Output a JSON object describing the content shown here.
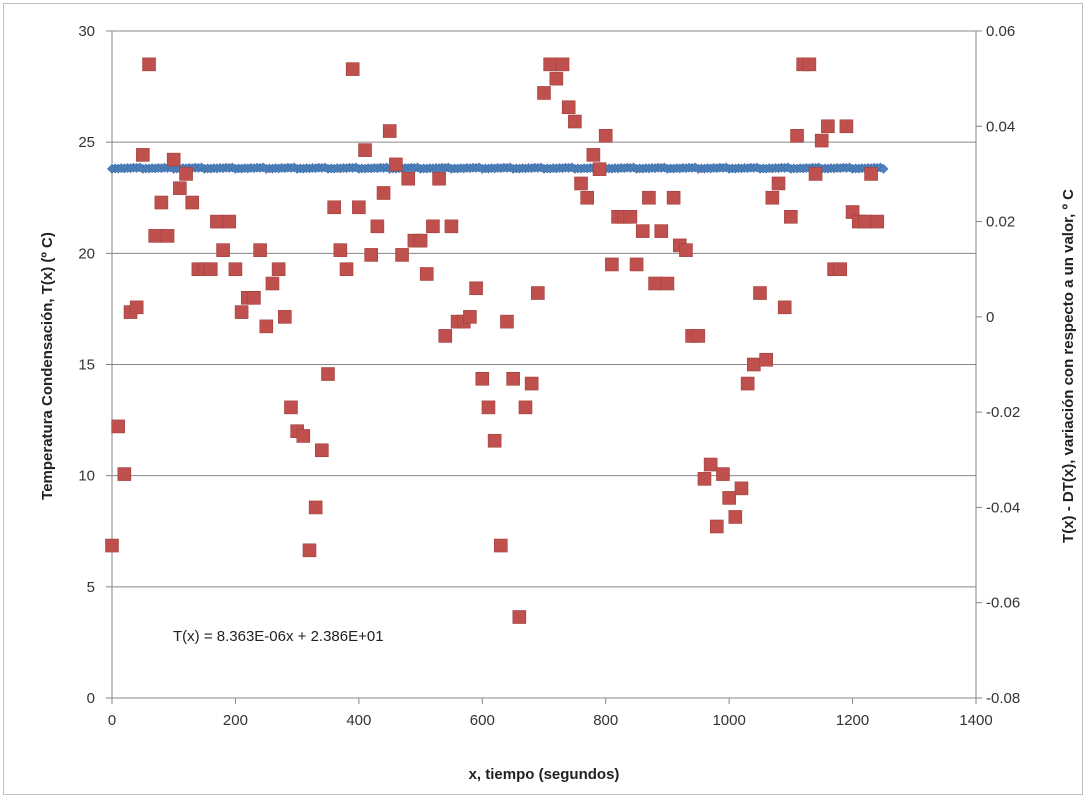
{
  "chart_data": {
    "type": "scatter",
    "xlabel": "x, tiempo (segundos)",
    "ylabel_left": "Temperatura Condensación, T(x) (º C)",
    "ylabel_right": "T(x) - DT(x), variación con respecto a un valor, º C",
    "xlim": [
      0,
      1400
    ],
    "ylim_left": [
      0,
      30
    ],
    "ylim_right": [
      -0.08,
      0.06
    ],
    "x_ticks": [
      "0",
      "200",
      "400",
      "600",
      "800",
      "1000",
      "1200",
      "1400"
    ],
    "y_left_ticks": [
      "0",
      "5",
      "10",
      "15",
      "20",
      "25",
      "30"
    ],
    "y_right_ticks": [
      "-0.08",
      "-0.06",
      "-0.04",
      "-0.02",
      "0",
      "0.02",
      "0.04",
      "0.06"
    ],
    "grid": "horizontal",
    "annotation": "T(x) = 8.363E-06x + 2.386E+01",
    "series": [
      {
        "marker": "diamond",
        "color": "#4f81bd",
        "axis": "left",
        "x_start": 0,
        "x_step": 5,
        "x_end": 1250,
        "values": [
          23.8,
          23.82,
          23.81,
          23.83,
          23.82,
          23.84,
          23.83,
          23.85,
          23.84,
          23.86
        ]
      },
      {
        "marker": "square",
        "color": "#c0504d",
        "axis": "right",
        "x": [
          0,
          10,
          20,
          30,
          40,
          50,
          60,
          70,
          80,
          90,
          100,
          110,
          120,
          130,
          140,
          150,
          160,
          170,
          180,
          190,
          200,
          210,
          220,
          230,
          240,
          250,
          260,
          270,
          280,
          290,
          300,
          310,
          320,
          330,
          340,
          350,
          360,
          370,
          380,
          390,
          400,
          410,
          420,
          430,
          440,
          450,
          460,
          470,
          480,
          490,
          500,
          510,
          520,
          530,
          540,
          550,
          560,
          570,
          580,
          590,
          600,
          610,
          620,
          630,
          640,
          650,
          660,
          670,
          680,
          690,
          700,
          710,
          720,
          730,
          740,
          750,
          760,
          770,
          780,
          790,
          800,
          810,
          820,
          830,
          840,
          850,
          860,
          870,
          880,
          890,
          900,
          910,
          920,
          930,
          940,
          950,
          960,
          970,
          980,
          990,
          1000,
          1010,
          1020,
          1030,
          1040,
          1050,
          1060,
          1070,
          1080,
          1090,
          1100,
          1110,
          1120,
          1130,
          1140,
          1150,
          1160,
          1170,
          1180,
          1190,
          1200,
          1210,
          1220,
          1230,
          1240
        ],
        "y": [
          -0.048,
          -0.023,
          -0.033,
          0.001,
          0.002,
          0.034,
          0.053,
          0.017,
          0.024,
          0.017,
          0.033,
          0.027,
          0.03,
          0.024,
          0.01,
          0.01,
          0.01,
          0.02,
          0.014,
          0.02,
          0.01,
          0.001,
          0.004,
          0.004,
          0.014,
          -0.002,
          0.007,
          0.01,
          0.0,
          -0.019,
          -0.024,
          -0.025,
          -0.049,
          -0.04,
          -0.028,
          -0.012,
          0.023,
          0.014,
          0.01,
          0.052,
          0.023,
          0.035,
          0.013,
          0.019,
          0.026,
          0.039,
          0.032,
          0.013,
          0.029,
          0.016,
          0.016,
          0.009,
          0.019,
          0.029,
          -0.004,
          0.019,
          -0.001,
          -0.001,
          0.0,
          0.006,
          -0.013,
          -0.019,
          -0.026,
          -0.048,
          -0.001,
          -0.013,
          -0.063,
          -0.019,
          -0.014,
          0.005,
          0.047,
          0.053,
          0.05,
          0.053,
          0.044,
          0.041,
          0.028,
          0.025,
          0.034,
          0.031,
          0.038,
          0.011,
          0.021,
          0.021,
          0.021,
          0.011,
          0.018,
          0.025,
          0.007,
          0.018,
          0.007,
          0.025,
          0.015,
          0.014,
          -0.004,
          -0.004,
          -0.034,
          -0.031,
          -0.044,
          -0.033,
          -0.038,
          -0.042,
          -0.036,
          -0.014,
          -0.01,
          0.005,
          -0.009,
          0.025,
          0.028,
          0.002,
          0.021,
          0.038,
          0.053,
          0.053,
          0.03,
          0.037,
          0.04,
          0.01,
          0.01,
          0.04,
          0.022,
          0.02,
          0.02,
          0.03,
          0.02
        ]
      }
    ]
  }
}
